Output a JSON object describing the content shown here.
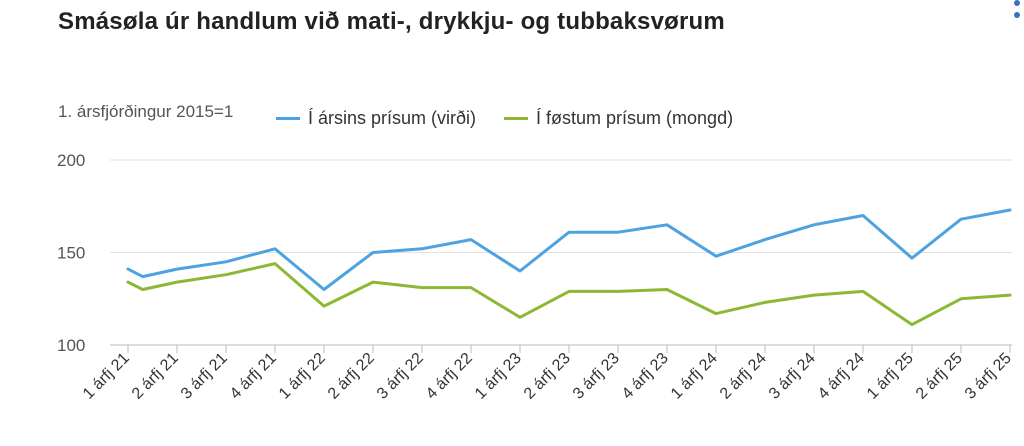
{
  "title": "Smásøla úr handlum við mati-, drykkju- og tubbaksvørum",
  "chart_data": {
    "type": "line",
    "title": "Smásøla úr handlum við mati-, drykkju- og tubbaksvørum",
    "ylabel": "1. ársfjórðingur 2015=1",
    "xlabel": "",
    "ylim": [
      100,
      200
    ],
    "yticks": [
      100,
      150,
      200
    ],
    "grid": true,
    "legend_position": "top",
    "categories": [
      "1 árfj 21",
      "2 árfj 21",
      "3 árfj 21",
      "4 árfj 21",
      "1 árfj 22",
      "2 árfj 22",
      "3 árfj 22",
      "4 árfj 22",
      "1 árfj 23",
      "2 árfj 23",
      "3 árfj 23",
      "4 árfj 23",
      "1 árfj 24",
      "2 árfj 24",
      "3 árfj 24",
      "4 árfj 24",
      "1 árfj 25",
      "2 árfj 25",
      "3 árfj 25"
    ],
    "x": [
      0,
      0.2,
      1,
      2,
      3,
      4,
      5,
      6,
      7,
      8,
      9,
      10,
      11,
      12,
      13,
      14,
      15,
      16,
      17,
      18
    ],
    "series": [
      {
        "name": "Í ársins prísum (virði)",
        "color": "#4da3e0",
        "x": [
          0,
          0.3,
          1,
          2,
          3,
          4,
          5,
          6,
          7,
          8,
          9,
          10,
          11,
          12,
          13,
          14,
          15,
          16,
          17,
          18
        ],
        "values": [
          141,
          137,
          141,
          145,
          152,
          130,
          150,
          152,
          157,
          140,
          161,
          161,
          165,
          148,
          157,
          165,
          170,
          147,
          168,
          173
        ]
      },
      {
        "name": "Í føstum prísum (mongd)",
        "color": "#8db833",
        "x": [
          0,
          0.3,
          1,
          2,
          3,
          4,
          5,
          6,
          7,
          8,
          9,
          10,
          11,
          12,
          13,
          14,
          15,
          16,
          17,
          18
        ],
        "values": [
          134,
          130,
          134,
          138,
          144,
          121,
          134,
          131,
          131,
          115,
          129,
          129,
          130,
          117,
          123,
          127,
          129,
          111,
          125,
          127
        ]
      }
    ]
  }
}
